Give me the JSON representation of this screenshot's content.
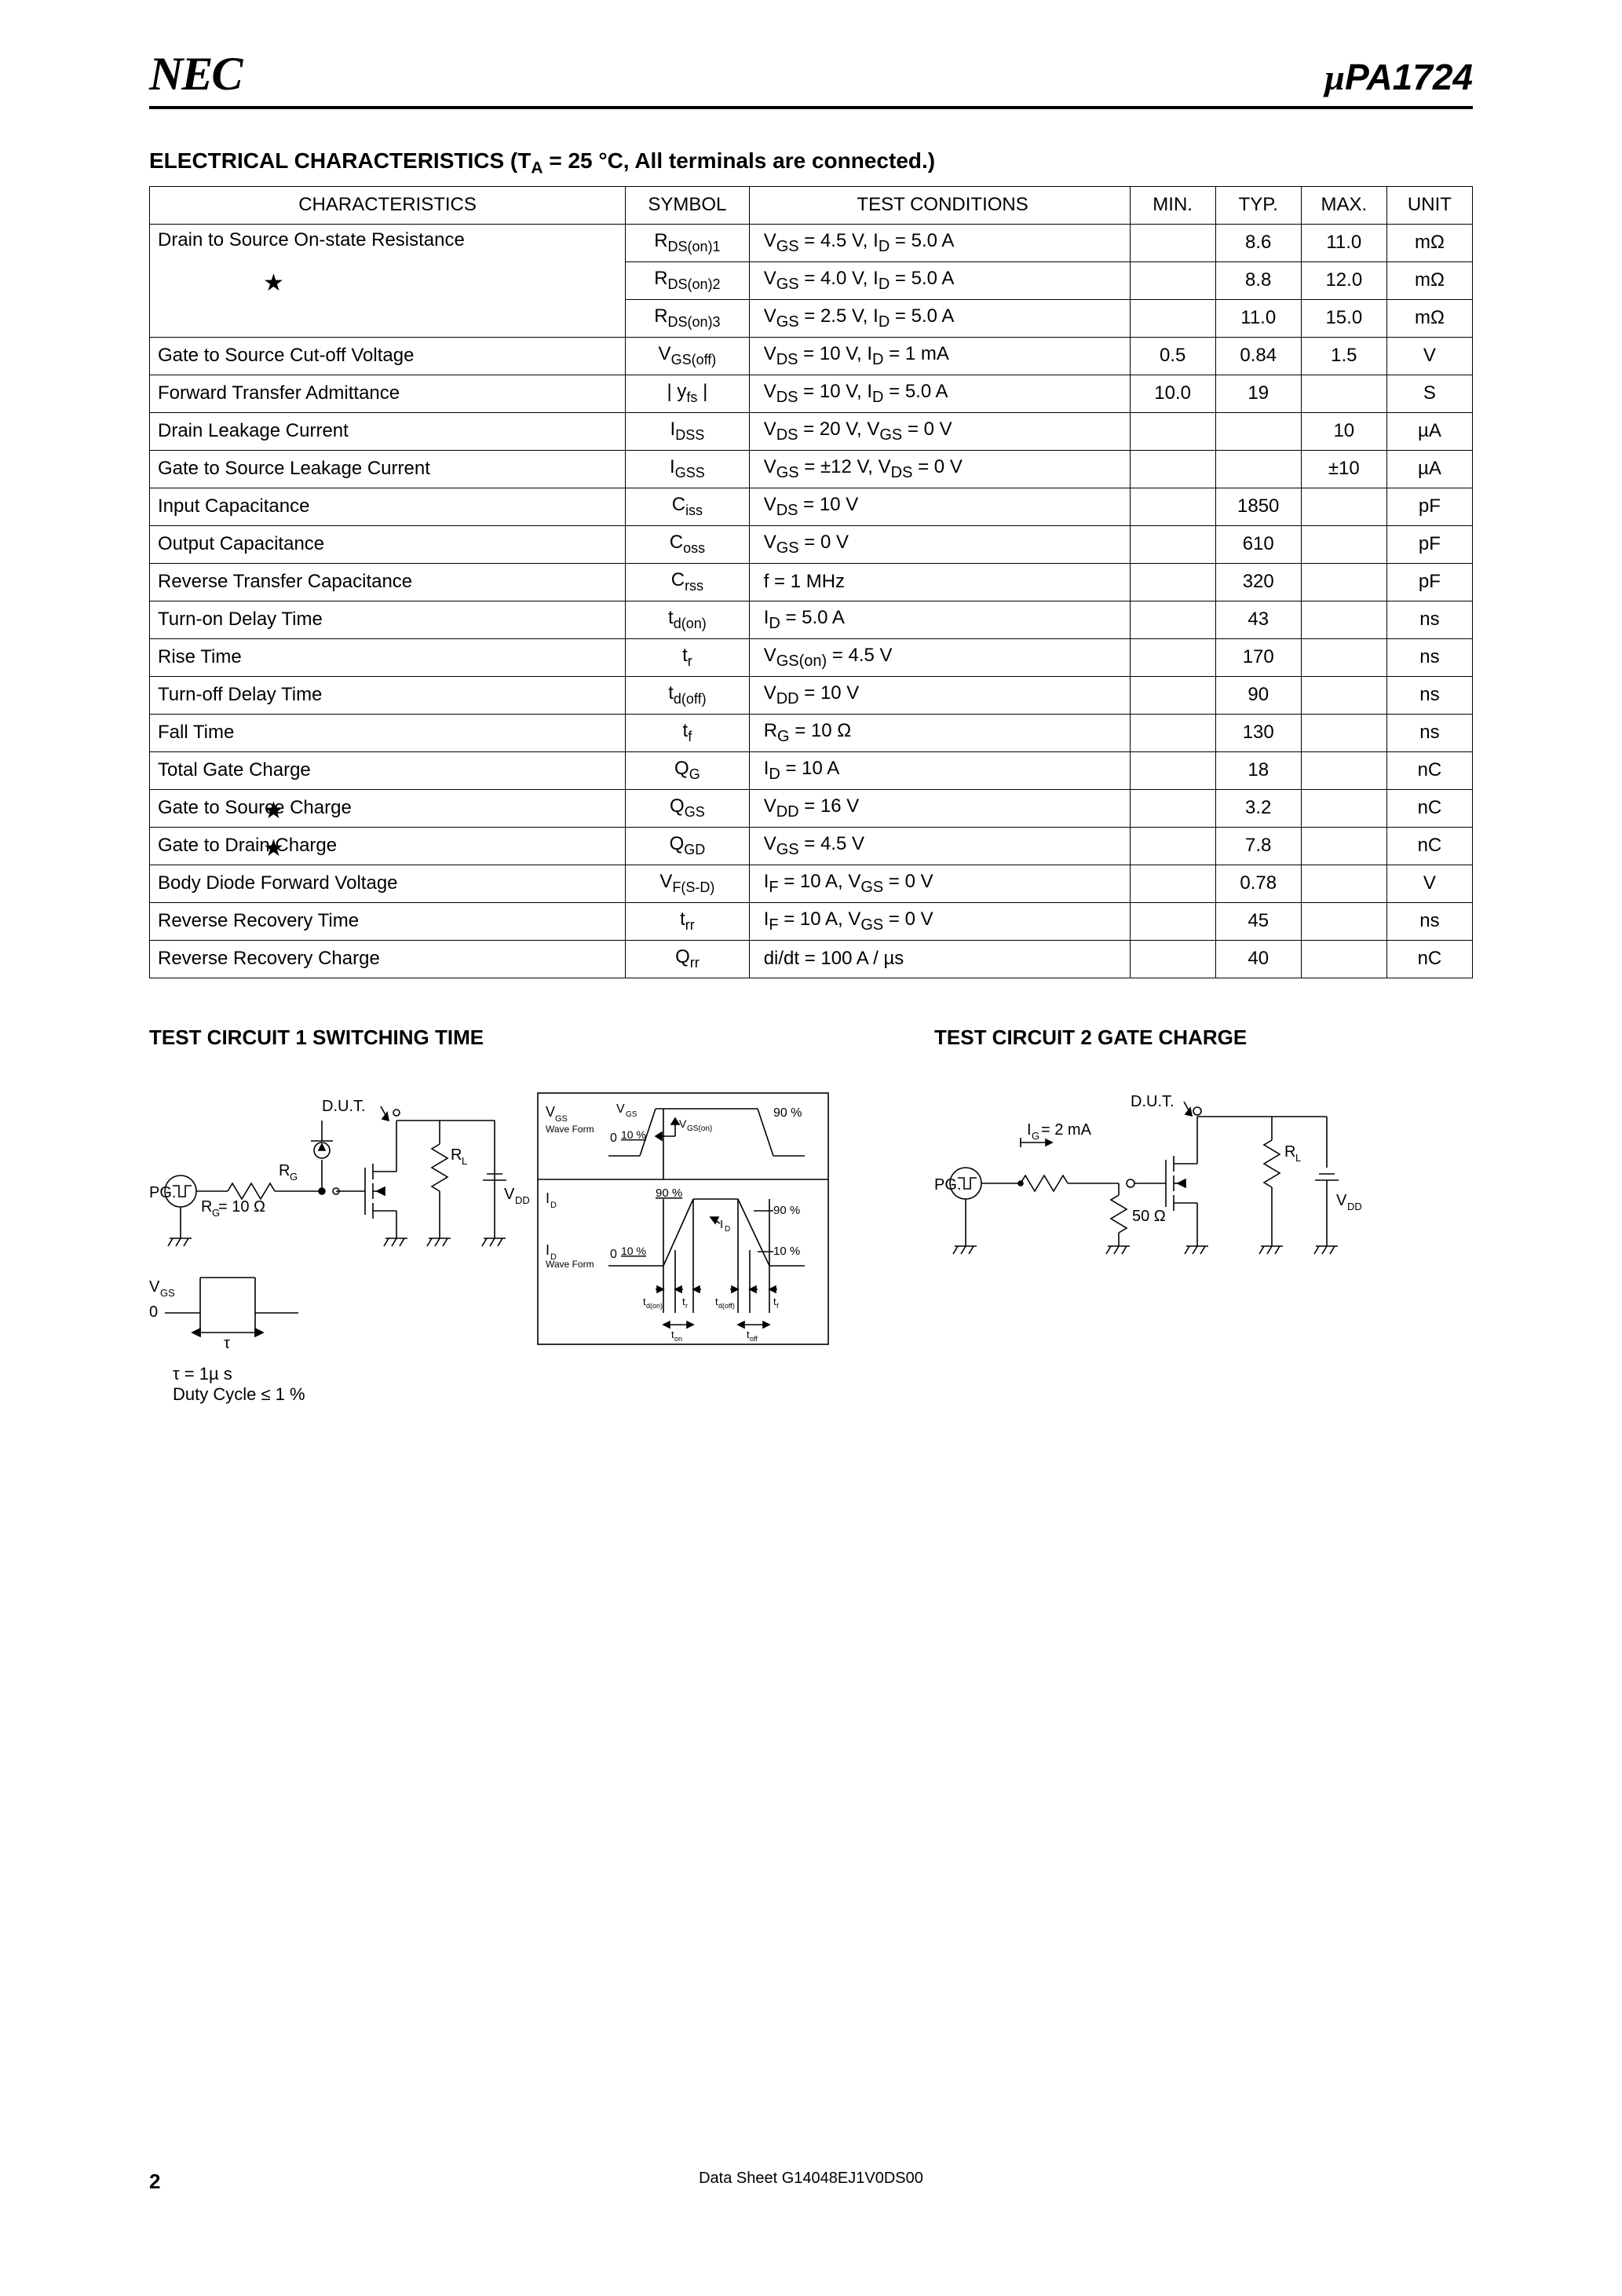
{
  "header": {
    "logo": "NEC",
    "part_prefix": "µ",
    "part_number": "PA1724"
  },
  "section_title": "ELECTRICAL CHARACTERISTICS (T",
  "section_title_sub": "A",
  "section_title_rest": " = 25 °C, All terminals are connected.)",
  "columns": {
    "characteristics": "CHARACTERISTICS",
    "symbol": "SYMBOL",
    "test_conditions": "TEST CONDITIONS",
    "min": "MIN.",
    "typ": "TYP.",
    "max": "MAX.",
    "unit": "UNIT"
  },
  "rows": [
    {
      "star": false,
      "char": "Drain to Source On-state Resistance",
      "sym": "R",
      "sym_sub": "DS(on)1",
      "cond": "V<sub>GS</sub> = 4.5 V, I<sub>D</sub> = 5.0 A",
      "min": "",
      "typ": "8.6",
      "max": "11.0",
      "unit": "mΩ"
    },
    {
      "star": true,
      "char": "",
      "sym": "R",
      "sym_sub": "DS(on)2",
      "cond": "V<sub>GS</sub> = 4.0 V, I<sub>D</sub> = 5.0 A",
      "min": "",
      "typ": "8.8",
      "max": "12.0",
      "unit": "mΩ"
    },
    {
      "star": false,
      "char": "",
      "sym": "R",
      "sym_sub": "DS(on)3",
      "cond": "V<sub>GS</sub> = 2.5 V, I<sub>D</sub> = 5.0 A",
      "min": "",
      "typ": "11.0",
      "max": "15.0",
      "unit": "mΩ"
    },
    {
      "star": false,
      "char": "Gate to Source Cut-off Voltage",
      "sym": "V",
      "sym_sub": "GS(off)",
      "cond": "V<sub>DS</sub> = 10 V, I<sub>D</sub> = 1 mA",
      "min": "0.5",
      "typ": "0.84",
      "max": "1.5",
      "unit": "V"
    },
    {
      "star": false,
      "char": "Forward Transfer Admittance",
      "sym": "| y",
      "sym_sub": "fs",
      "sym_post": " |",
      "cond": "V<sub>DS</sub> = 10 V, I<sub>D</sub> = 5.0 A",
      "min": "10.0",
      "typ": "19",
      "max": "",
      "unit": "S"
    },
    {
      "star": false,
      "char": "Drain Leakage Current",
      "sym": "I",
      "sym_sub": "DSS",
      "cond": "V<sub>DS</sub> = 20 V, V<sub>GS</sub> = 0 V",
      "min": "",
      "typ": "",
      "max": "10",
      "unit": "µA"
    },
    {
      "star": false,
      "char": "Gate to Source Leakage Current",
      "sym": "I",
      "sym_sub": "GSS",
      "cond": "V<sub>GS</sub> = ±12 V, V<sub>DS</sub> = 0 V",
      "min": "",
      "typ": "",
      "max": "±10",
      "unit": "µA"
    },
    {
      "star": false,
      "char": "Input Capacitance",
      "sym": "C",
      "sym_sub": "iss",
      "cond": "V<sub>DS</sub> = 10 V",
      "min": "",
      "typ": "1850",
      "max": "",
      "unit": "pF"
    },
    {
      "star": false,
      "char": "Output Capacitance",
      "sym": "C",
      "sym_sub": "oss",
      "cond": "V<sub>GS</sub> = 0 V",
      "min": "",
      "typ": "610",
      "max": "",
      "unit": "pF"
    },
    {
      "star": false,
      "char": "Reverse Transfer Capacitance",
      "sym": "C",
      "sym_sub": "rss",
      "cond": "f = 1 MHz",
      "min": "",
      "typ": "320",
      "max": "",
      "unit": "pF"
    },
    {
      "star": false,
      "char": "Turn-on Delay Time",
      "sym": "t",
      "sym_sub": "d(on)",
      "cond": "I<sub>D</sub> = 5.0 A",
      "min": "",
      "typ": "43",
      "max": "",
      "unit": "ns"
    },
    {
      "star": false,
      "char": "Rise Time",
      "sym": "t",
      "sym_sub": "r",
      "cond": "V<sub>GS(on)</sub> = 4.5 V",
      "min": "",
      "typ": "170",
      "max": "",
      "unit": "ns"
    },
    {
      "star": false,
      "char": "Turn-off Delay Time",
      "sym": "t",
      "sym_sub": "d(off)",
      "cond": "V<sub>DD</sub> = 10 V",
      "min": "",
      "typ": "90",
      "max": "",
      "unit": "ns"
    },
    {
      "star": false,
      "char": "Fall Time",
      "sym": "t",
      "sym_sub": "f",
      "cond": "R<sub>G</sub> = 10 Ω",
      "min": "",
      "typ": "130",
      "max": "",
      "unit": "ns"
    },
    {
      "star": false,
      "char": "Total Gate Charge",
      "sym": "Q",
      "sym_sub": "G",
      "cond": "I<sub>D</sub> = 10 A",
      "min": "",
      "typ": "18",
      "max": "",
      "unit": "nC"
    },
    {
      "star": true,
      "char": "Gate to Source Charge",
      "sym": "Q",
      "sym_sub": "GS",
      "cond": "V<sub>DD</sub> = 16 V",
      "min": "",
      "typ": "3.2",
      "max": "",
      "unit": "nC"
    },
    {
      "star": true,
      "char": "Gate to Drain Charge",
      "sym": "Q",
      "sym_sub": "GD",
      "cond": "V<sub>GS</sub> = 4.5 V",
      "min": "",
      "typ": "7.8",
      "max": "",
      "unit": "nC"
    },
    {
      "star": false,
      "char": "Body Diode Forward Voltage",
      "sym": "V",
      "sym_sub": "F(S-D)",
      "cond": "I<sub>F</sub> = 10 A, V<sub>GS</sub> = 0 V",
      "min": "",
      "typ": "0.78",
      "max": "",
      "unit": "V"
    },
    {
      "star": false,
      "char": "Reverse Recovery Time",
      "sym": "t",
      "sym_sub": "rr",
      "cond": "I<sub>F</sub> = 10 A, V<sub>GS</sub> = 0 V",
      "min": "",
      "typ": "45",
      "max": "",
      "unit": "ns"
    },
    {
      "star": false,
      "char": "Reverse Recovery Charge",
      "sym": "Q",
      "sym_sub": "rr",
      "cond": "di/dt = 100 A / µs",
      "min": "",
      "typ": "40",
      "max": "",
      "unit": "nC"
    }
  ],
  "circuit1": {
    "title": "TEST CIRCUIT 1  SWITCHING TIME",
    "dut": "D.U.T.",
    "rl": "R",
    "rl_sub": "L",
    "rg": "R",
    "rg_sub": "G",
    "rg_val": "R<sub>G</sub> = 10 Ω",
    "pg": "PG.",
    "vdd": "V",
    "vdd_sub": "DD",
    "vgs": "V",
    "vgs_sub": "GS",
    "zero": "0",
    "tau": "τ",
    "tau_note": "τ = 1µ s",
    "duty_note": "Duty Cycle ≤ 1 %",
    "wave_vgs": "V<sub>GS</sub>",
    "wave_vgs_label": "Wave Form",
    "wave_id": "I<sub>D</sub>",
    "p90": "90 %",
    "p10": "10 %",
    "p0_10": "0",
    "vgson": "V<sub>GS(on)</sub>",
    "id_label": "I<sub>D</sub>",
    "tdon": "t<sub>d(on)</sub>",
    "tr": "t<sub>r</sub>",
    "tdoff": "t<sub>d(off)</sub>",
    "tf": "t<sub>f</sub>",
    "ton": "t<sub>on</sub>",
    "toff": "t<sub>off</sub>"
  },
  "circuit2": {
    "title": "TEST CIRCUIT 2  GATE CHARGE",
    "dut": "D.U.T.",
    "ig": "I<sub>G</sub> = 2 mA",
    "r50": "50 Ω",
    "pg": "PG.",
    "rl": "R",
    "rl_sub": "L",
    "vdd": "V",
    "vdd_sub": "DD"
  },
  "footer": {
    "page": "2",
    "dsid": "Data Sheet  G14048EJ1V0DS00"
  }
}
